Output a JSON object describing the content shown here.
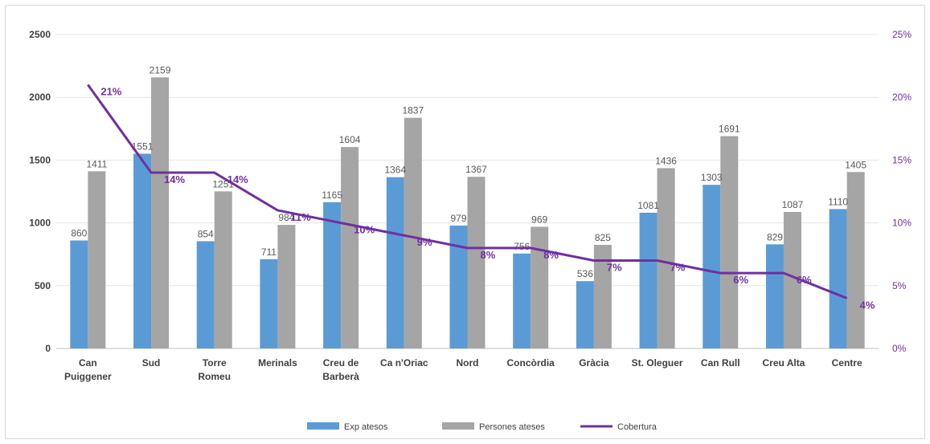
{
  "chart_data": {
    "type": "bar",
    "categories": [
      [
        "Can",
        "Puiggener"
      ],
      [
        "Sud"
      ],
      [
        "Torre",
        "Romeu"
      ],
      [
        "Merinals"
      ],
      [
        "Creu de",
        "Barberà"
      ],
      [
        "Ca n'Oriac"
      ],
      [
        "Nord"
      ],
      [
        "Concòrdia"
      ],
      [
        "Gràcia"
      ],
      [
        "St. Oleguer"
      ],
      [
        "Can Rull"
      ],
      [
        "Creu Alta"
      ],
      [
        "Centre"
      ]
    ],
    "series": [
      {
        "name": "Exp atesos",
        "type": "bar",
        "axis": "left",
        "color": "#5b9bd5",
        "values": [
          860,
          1551,
          854,
          711,
          1165,
          1364,
          979,
          756,
          536,
          1081,
          1303,
          829,
          1110
        ],
        "labels": [
          "860",
          "1551",
          "854",
          "711",
          "1165",
          "1364",
          "979",
          "756",
          "536",
          "1081",
          "1303",
          "829",
          "1110"
        ]
      },
      {
        "name": "Persones ateses",
        "type": "bar",
        "axis": "left",
        "color": "#a5a5a5",
        "values": [
          1411,
          2159,
          1251,
          984,
          1604,
          1837,
          1367,
          969,
          825,
          1436,
          1691,
          1087,
          1405
        ],
        "labels": [
          "1411",
          "2159",
          "1251",
          "984",
          "1604",
          "1837",
          "1367",
          "969",
          "825",
          "1436",
          "1691",
          "1087",
          "1405"
        ]
      },
      {
        "name": "Cobertura",
        "type": "line",
        "axis": "right",
        "color": "#7030a0",
        "values": [
          21,
          14,
          14,
          11,
          10,
          9,
          8,
          8,
          7,
          7,
          6,
          6,
          4
        ],
        "labels": [
          "21%",
          "14%",
          "14%",
          "11%",
          "10%",
          "9%",
          "8%",
          "8%",
          "7%",
          "7%",
          "6%",
          "6%",
          "4%"
        ]
      }
    ],
    "ylim": [
      0,
      2500
    ],
    "y_ticks": [
      "0",
      "500",
      "1000",
      "1500",
      "2000",
      "2500"
    ],
    "y2lim": [
      0,
      25
    ],
    "y2_ticks": [
      "0%",
      "5%",
      "10%",
      "15%",
      "20%",
      "25%"
    ],
    "grid": true,
    "legend_position": "bottom"
  }
}
